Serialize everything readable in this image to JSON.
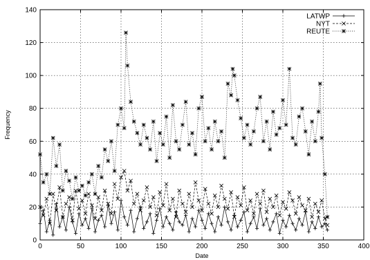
{
  "chart_data": {
    "type": "line",
    "title": "",
    "xlabel": "Date",
    "ylabel": "Frequency",
    "xlim": [
      0,
      400
    ],
    "ylim": [
      0,
      140
    ],
    "xticks": [
      0,
      50,
      100,
      150,
      200,
      250,
      300,
      350,
      400
    ],
    "yticks": [
      0,
      20,
      40,
      60,
      80,
      100,
      120,
      140
    ],
    "grid": true,
    "legend_position": "top-right",
    "series": [
      {
        "name": "LATWP",
        "style": "plus-solid",
        "x": [
          0,
          4,
          8,
          12,
          16,
          20,
          24,
          28,
          32,
          36,
          40,
          44,
          48,
          52,
          56,
          60,
          64,
          68,
          72,
          76,
          80,
          84,
          88,
          92,
          96,
          100,
          104,
          108,
          112,
          116,
          120,
          124,
          128,
          132,
          136,
          140,
          144,
          148,
          152,
          156,
          160,
          164,
          168,
          172,
          176,
          180,
          184,
          188,
          192,
          196,
          200,
          204,
          208,
          212,
          216,
          220,
          224,
          228,
          232,
          236,
          240,
          244,
          248,
          252,
          256,
          260,
          264,
          268,
          272,
          276,
          280,
          284,
          288,
          292,
          296,
          300,
          304,
          308,
          312,
          316,
          320,
          324,
          328,
          332,
          336,
          340,
          344,
          348,
          352,
          355
        ],
        "y": [
          10,
          18,
          5,
          12,
          3,
          22,
          8,
          14,
          6,
          20,
          11,
          4,
          16,
          9,
          13,
          7,
          19,
          5,
          12,
          15,
          8,
          21,
          10,
          17,
          6,
          24,
          14,
          9,
          18,
          5,
          13,
          20,
          7,
          11,
          16,
          4,
          12,
          19,
          8,
          14,
          10,
          6,
          17,
          11,
          9,
          15,
          5,
          13,
          8,
          18,
          12,
          7,
          16,
          10,
          5,
          14,
          9,
          20,
          11,
          6,
          15,
          8,
          12,
          17,
          5,
          10,
          14,
          7,
          19,
          9,
          13,
          6,
          11,
          16,
          4,
          12,
          8,
          15,
          10,
          6,
          13,
          9,
          17,
          5,
          11,
          7,
          14,
          8,
          10,
          6
        ]
      },
      {
        "name": "NYT",
        "style": "cross-dashed",
        "x": [
          0,
          4,
          8,
          12,
          16,
          20,
          24,
          28,
          32,
          36,
          40,
          44,
          48,
          52,
          56,
          60,
          64,
          68,
          72,
          76,
          80,
          84,
          88,
          92,
          96,
          100,
          104,
          108,
          112,
          116,
          120,
          124,
          128,
          132,
          136,
          140,
          144,
          148,
          152,
          156,
          160,
          164,
          168,
          172,
          176,
          180,
          184,
          188,
          192,
          196,
          200,
          204,
          208,
          212,
          216,
          220,
          224,
          228,
          232,
          236,
          240,
          244,
          248,
          252,
          256,
          260,
          264,
          268,
          272,
          276,
          280,
          284,
          288,
          292,
          296,
          300,
          304,
          308,
          312,
          316,
          320,
          324,
          328,
          332,
          336,
          340,
          344,
          348,
          352,
          355
        ],
        "y": [
          20,
          15,
          25,
          10,
          28,
          18,
          32,
          14,
          22,
          26,
          12,
          30,
          19,
          24,
          16,
          28,
          21,
          13,
          26,
          18,
          30,
          22,
          16,
          34,
          25,
          38,
          42,
          30,
          36,
          22,
          28,
          18,
          24,
          32,
          20,
          26,
          15,
          29,
          21,
          34,
          18,
          25,
          14,
          30,
          22,
          17,
          28,
          20,
          35,
          24,
          18,
          31,
          22,
          16,
          27,
          20,
          33,
          25,
          19,
          29,
          14,
          26,
          21,
          32,
          18,
          24,
          16,
          28,
          22,
          30,
          17,
          25,
          20,
          27,
          15,
          23,
          19,
          29,
          24,
          16,
          26,
          21,
          18,
          25,
          14,
          22,
          17,
          24,
          13,
          9
        ]
      },
      {
        "name": "REUTE",
        "style": "star-dotted",
        "x": [
          0,
          4,
          8,
          12,
          16,
          20,
          24,
          28,
          32,
          36,
          40,
          44,
          48,
          52,
          56,
          60,
          64,
          68,
          72,
          76,
          80,
          84,
          88,
          92,
          96,
          100,
          104,
          106,
          108,
          112,
          116,
          120,
          124,
          128,
          132,
          136,
          140,
          144,
          148,
          152,
          156,
          160,
          164,
          168,
          172,
          176,
          180,
          184,
          188,
          192,
          196,
          200,
          204,
          208,
          212,
          216,
          220,
          224,
          228,
          232,
          236,
          238,
          240,
          244,
          248,
          252,
          256,
          260,
          264,
          268,
          272,
          276,
          280,
          284,
          288,
          292,
          296,
          300,
          304,
          308,
          312,
          316,
          320,
          324,
          328,
          332,
          336,
          340,
          344,
          346,
          348,
          352,
          355
        ],
        "y": [
          52,
          35,
          40,
          28,
          62,
          45,
          58,
          30,
          42,
          36,
          25,
          38,
          30,
          33,
          27,
          35,
          40,
          28,
          45,
          38,
          55,
          48,
          60,
          42,
          70,
          80,
          68,
          126,
          106,
          84,
          72,
          65,
          58,
          70,
          62,
          55,
          72,
          48,
          65,
          58,
          75,
          50,
          82,
          60,
          55,
          70,
          84,
          58,
          65,
          52,
          80,
          87,
          60,
          68,
          55,
          72,
          60,
          66,
          50,
          95,
          88,
          104,
          100,
          85,
          74,
          62,
          70,
          58,
          66,
          80,
          87,
          60,
          72,
          55,
          78,
          64,
          68,
          85,
          70,
          104,
          62,
          58,
          75,
          80,
          66,
          52,
          72,
          60,
          78,
          95,
          62,
          40,
          14
        ]
      }
    ]
  }
}
